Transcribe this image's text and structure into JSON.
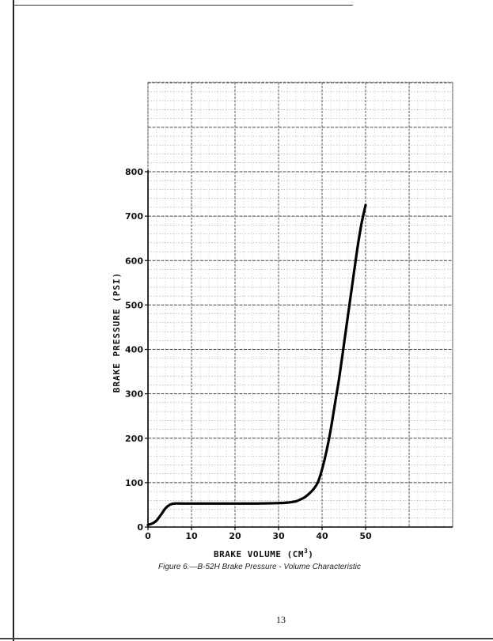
{
  "chart_data": {
    "type": "line",
    "title": "",
    "xlabel": "BRAKE VOLUME (CM",
    "xlabel_superscript": "3",
    "xlabel_suffix": ")",
    "ylabel": "BRAKE PRESSURE (PSI)",
    "xlim": [
      0,
      70
    ],
    "ylim": [
      0,
      800
    ],
    "x_ticks": [
      "0",
      "10",
      "20",
      "30",
      "40",
      "50"
    ],
    "y_ticks": [
      "0",
      "100",
      "200",
      "300",
      "400",
      "500",
      "600",
      "700",
      "800"
    ],
    "grid": true,
    "series": [
      {
        "x": [
          0,
          1,
          2,
          3,
          4,
          5,
          6,
          8,
          10,
          15,
          20,
          25,
          30,
          32,
          34,
          35,
          36,
          37,
          38,
          39,
          40,
          41,
          42,
          43,
          44,
          45,
          46,
          47,
          48,
          49,
          50
        ],
        "y": [
          5,
          8,
          15,
          28,
          42,
          50,
          53,
          53,
          53,
          53,
          53,
          53,
          54,
          55,
          58,
          62,
          67,
          75,
          85,
          100,
          130,
          170,
          220,
          280,
          340,
          410,
          480,
          550,
          620,
          680,
          725
        ]
      }
    ]
  },
  "caption": "Figure 6.—B-52H Brake Pressure - Volume Characteristic",
  "page_number": "13"
}
